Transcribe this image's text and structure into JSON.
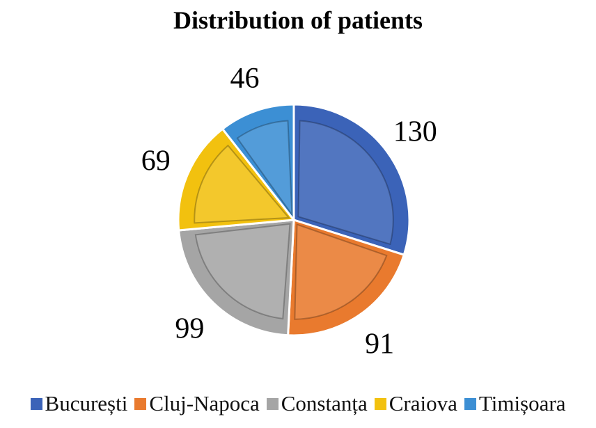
{
  "chart_data": {
    "type": "pie",
    "title": "Distribution  of patients",
    "categories": [
      "București",
      "Cluj-Napoca",
      "Constanța",
      "Craiova",
      "Timișoara"
    ],
    "values": [
      130,
      91,
      99,
      69,
      46
    ],
    "colors": [
      "#3b63b8",
      "#e97a2e",
      "#a5a5a5",
      "#f2c10f",
      "#3c8fd4"
    ],
    "start": "12 o'clock, clockwise",
    "legend": "bottom"
  }
}
